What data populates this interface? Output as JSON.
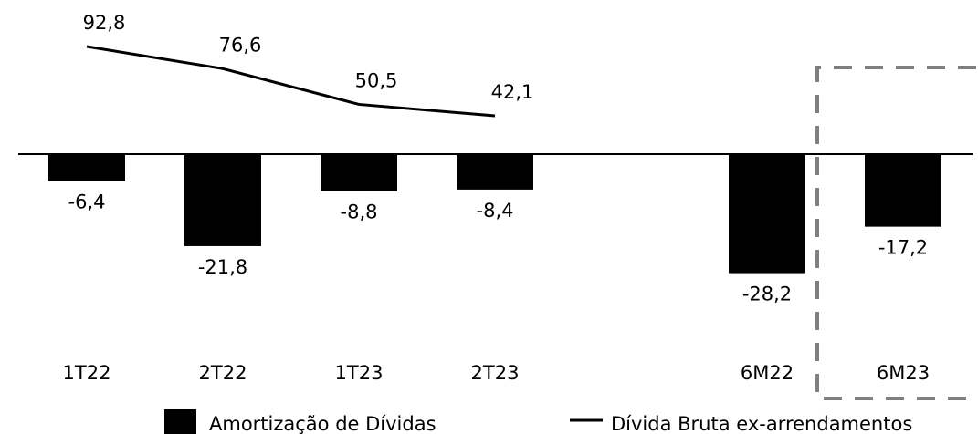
{
  "chart_data": {
    "type": "bar",
    "categories": [
      "1T22",
      "2T22",
      "1T23",
      "2T23",
      "6M22",
      "6M23"
    ],
    "series": [
      {
        "name": "Amortização de Dívidas",
        "type": "bar",
        "values": [
          -6.4,
          -21.8,
          -8.8,
          -8.4,
          -28.2,
          -17.2
        ],
        "labels": [
          "-6,4",
          "-21,8",
          "-8,8",
          "-8,4",
          "-28,2",
          "-17,2"
        ],
        "color": "#000000"
      },
      {
        "name": "Dívida Bruta ex-arrendamentos",
        "type": "line",
        "values": [
          92.8,
          76.6,
          50.5,
          42.1,
          null,
          null
        ],
        "labels": [
          "92,8",
          "76,6",
          "50,5",
          "42,1",
          "",
          ""
        ],
        "color": "#000000"
      }
    ],
    "highlight": {
      "category": "6M23",
      "style": "dashed-box",
      "color": "#7f7f7f"
    },
    "legend_position": "bottom",
    "grid": false
  }
}
